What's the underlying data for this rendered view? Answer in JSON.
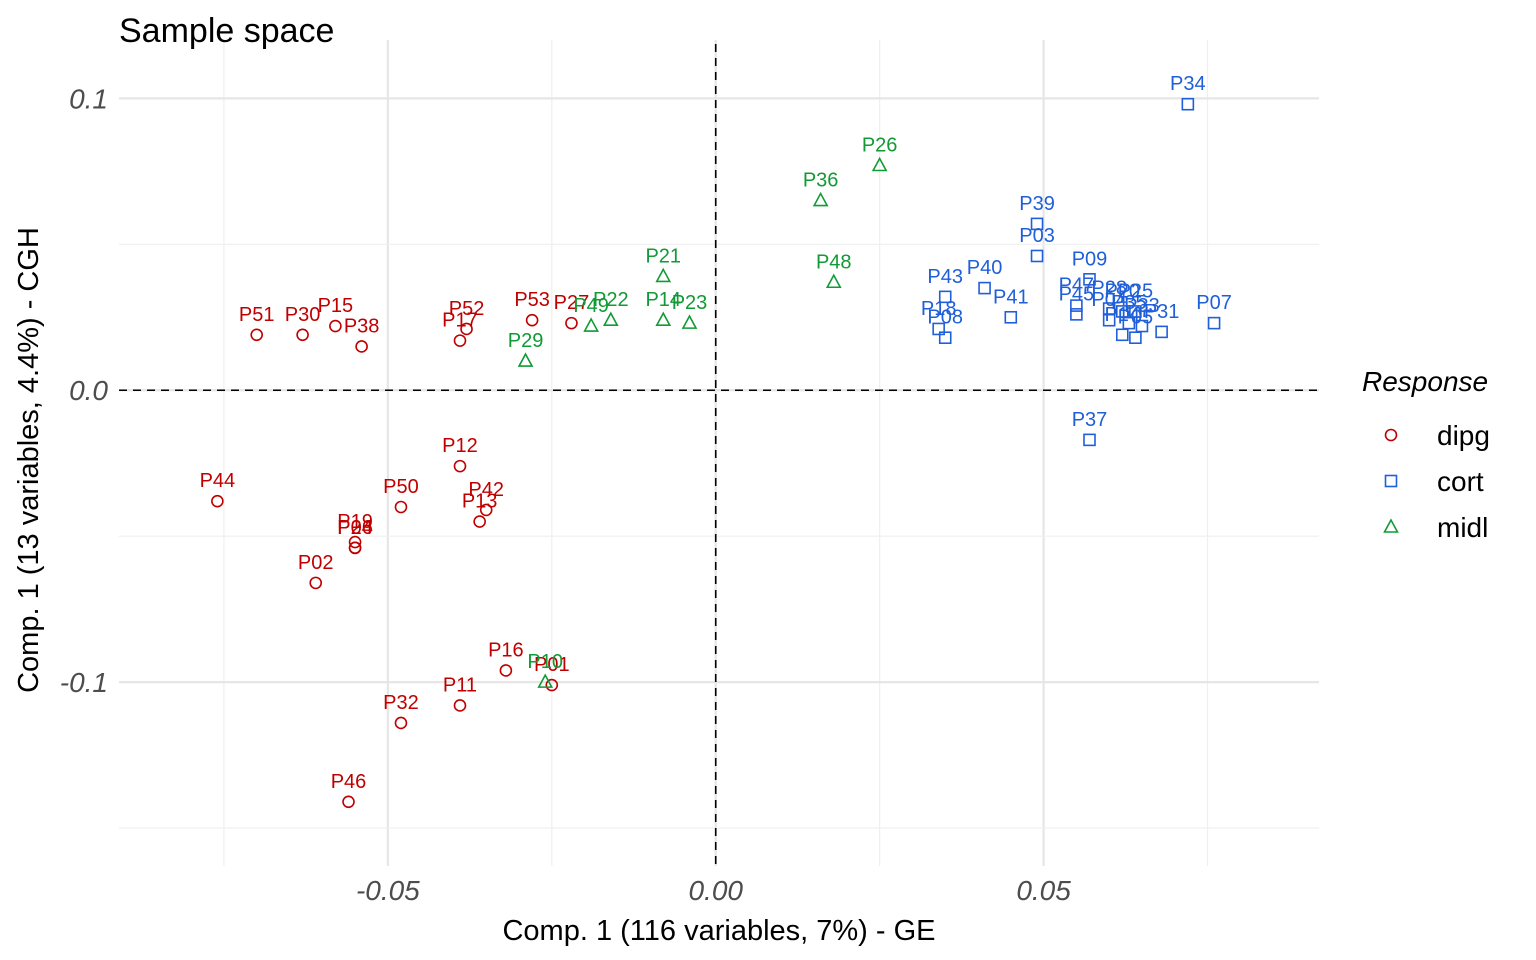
{
  "chart_data": {
    "type": "scatter",
    "title": "Sample space",
    "xlabel": "Comp. 1 (116 variables, 7%) - GE",
    "ylabel": "Comp. 1 (13 variables, 4.4%) - CGH",
    "xlim": [
      -0.091,
      0.092
    ],
    "ylim": [
      -0.163,
      0.12
    ],
    "x_ticks": [
      -0.05,
      0.0,
      0.05
    ],
    "x_tick_labels": [
      "-0.05",
      "0.00",
      "0.05"
    ],
    "y_ticks": [
      -0.1,
      0.0,
      0.1
    ],
    "y_tick_labels": [
      "-0.1",
      "0.0",
      "0.1"
    ],
    "reference_lines": {
      "x": 0,
      "y": 0,
      "style": "dashed"
    },
    "legend": {
      "title": "Response",
      "position": "right",
      "entries": [
        {
          "name": "dipg",
          "shape": "circle",
          "color": "#c00000"
        },
        {
          "name": "cort",
          "shape": "square",
          "color": "#1f5fd9"
        },
        {
          "name": "midl",
          "shape": "triangle",
          "color": "#119a35"
        }
      ]
    },
    "series": [
      {
        "name": "dipg",
        "shape": "circle",
        "color": "#c00000",
        "points": [
          {
            "label": "P51",
            "x": -0.07,
            "y": 0.019
          },
          {
            "label": "P30",
            "x": -0.063,
            "y": 0.019
          },
          {
            "label": "P15",
            "x": -0.058,
            "y": 0.022
          },
          {
            "label": "P38",
            "x": -0.054,
            "y": 0.015
          },
          {
            "label": "P52",
            "x": -0.038,
            "y": 0.021
          },
          {
            "label": "P17",
            "x": -0.039,
            "y": 0.017
          },
          {
            "label": "P53",
            "x": -0.028,
            "y": 0.024
          },
          {
            "label": "P27",
            "x": -0.022,
            "y": 0.023
          },
          {
            "label": "P44",
            "x": -0.076,
            "y": -0.038
          },
          {
            "label": "P19",
            "x": -0.055,
            "y": -0.052
          },
          {
            "label": "P24",
            "x": -0.055,
            "y": -0.054
          },
          {
            "label": "P06",
            "x": -0.055,
            "y": -0.054
          },
          {
            "label": "P50",
            "x": -0.048,
            "y": -0.04
          },
          {
            "label": "P02",
            "x": -0.061,
            "y": -0.066
          },
          {
            "label": "P12",
            "x": -0.039,
            "y": -0.026
          },
          {
            "label": "P42",
            "x": -0.035,
            "y": -0.041
          },
          {
            "label": "P13",
            "x": -0.036,
            "y": -0.045
          },
          {
            "label": "P16",
            "x": -0.032,
            "y": -0.096
          },
          {
            "label": "P01",
            "x": -0.025,
            "y": -0.101
          },
          {
            "label": "P11",
            "x": -0.039,
            "y": -0.108
          },
          {
            "label": "P32",
            "x": -0.048,
            "y": -0.114
          },
          {
            "label": "P46",
            "x": -0.056,
            "y": -0.141
          }
        ]
      },
      {
        "name": "cort",
        "shape": "square",
        "color": "#1f5fd9",
        "points": [
          {
            "label": "P34",
            "x": 0.072,
            "y": 0.098
          },
          {
            "label": "P39",
            "x": 0.049,
            "y": 0.057
          },
          {
            "label": "P03",
            "x": 0.049,
            "y": 0.046
          },
          {
            "label": "P09",
            "x": 0.057,
            "y": 0.038
          },
          {
            "label": "P40",
            "x": 0.041,
            "y": 0.035
          },
          {
            "label": "P43",
            "x": 0.035,
            "y": 0.032
          },
          {
            "label": "P41",
            "x": 0.045,
            "y": 0.025
          },
          {
            "label": "P18",
            "x": 0.034,
            "y": 0.021
          },
          {
            "label": "P08",
            "x": 0.035,
            "y": 0.018
          },
          {
            "label": "P47",
            "x": 0.055,
            "y": 0.029
          },
          {
            "label": "P45",
            "x": 0.055,
            "y": 0.026
          },
          {
            "label": "P28",
            "x": 0.06,
            "y": 0.028
          },
          {
            "label": "P20",
            "x": 0.062,
            "y": 0.027
          },
          {
            "label": "P25",
            "x": 0.064,
            "y": 0.027
          },
          {
            "label": "P04",
            "x": 0.06,
            "y": 0.024
          },
          {
            "label": "P35",
            "x": 0.063,
            "y": 0.023
          },
          {
            "label": "P14",
            "x": 0.062,
            "y": 0.019
          },
          {
            "label": "P05",
            "x": 0.064,
            "y": 0.018
          },
          {
            "label": "P33",
            "x": 0.065,
            "y": 0.022
          },
          {
            "label": "P31",
            "x": 0.068,
            "y": 0.02
          },
          {
            "label": "P07",
            "x": 0.076,
            "y": 0.023
          },
          {
            "label": "P37",
            "x": 0.057,
            "y": -0.017
          }
        ]
      },
      {
        "name": "midl",
        "shape": "triangle",
        "color": "#119a35",
        "points": [
          {
            "label": "P26",
            "x": 0.025,
            "y": 0.077
          },
          {
            "label": "P36",
            "x": 0.016,
            "y": 0.065
          },
          {
            "label": "P48",
            "x": 0.018,
            "y": 0.037
          },
          {
            "label": "P21",
            "x": -0.008,
            "y": 0.039
          },
          {
            "label": "P49",
            "x": -0.019,
            "y": 0.022
          },
          {
            "label": "P22",
            "x": -0.016,
            "y": 0.024
          },
          {
            "label": "P23",
            "x": -0.004,
            "y": 0.023
          },
          {
            "label": "P14",
            "x": -0.008,
            "y": 0.024
          },
          {
            "label": "P29",
            "x": -0.029,
            "y": 0.01
          },
          {
            "label": "P10",
            "x": -0.026,
            "y": -0.1
          }
        ]
      }
    ]
  }
}
